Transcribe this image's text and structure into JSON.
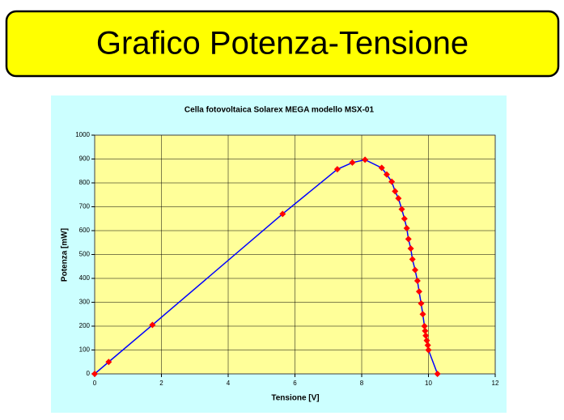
{
  "slide_title": "Grafico Potenza-Tensione",
  "chart_data": {
    "type": "line",
    "title": "Cella fotovoltaica Solarex MEGA modello MSX-01",
    "x_label": "Tensione [V]",
    "y_label": "Potenza [mW]",
    "x": [
      0,
      0.42,
      1.73,
      5.63,
      7.27,
      7.72,
      8.1,
      8.6,
      8.75,
      8.9,
      9.0,
      9.1,
      9.2,
      9.28,
      9.35,
      9.4,
      9.47,
      9.52,
      9.6,
      9.67,
      9.72,
      9.78,
      9.83,
      9.88,
      9.9,
      9.92,
      9.95,
      9.98,
      10.0,
      10.27
    ],
    "series": [
      {
        "name": "Potenza",
        "color": "#0000ff",
        "marker_color": "#ff0000",
        "values": [
          0,
          50,
          205,
          670,
          857,
          885,
          897,
          863,
          835,
          805,
          765,
          735,
          690,
          650,
          610,
          565,
          525,
          480,
          435,
          390,
          345,
          295,
          250,
          200,
          180,
          160,
          140,
          120,
          100,
          0
        ]
      }
    ],
    "xlim": [
      0,
      12
    ],
    "xticks": [
      0,
      2,
      4,
      6,
      8,
      10,
      12
    ],
    "ylim": [
      0,
      1000
    ],
    "yticks": [
      0,
      100,
      200,
      300,
      400,
      500,
      600,
      700,
      800,
      900,
      1000
    ],
    "grid": true
  }
}
